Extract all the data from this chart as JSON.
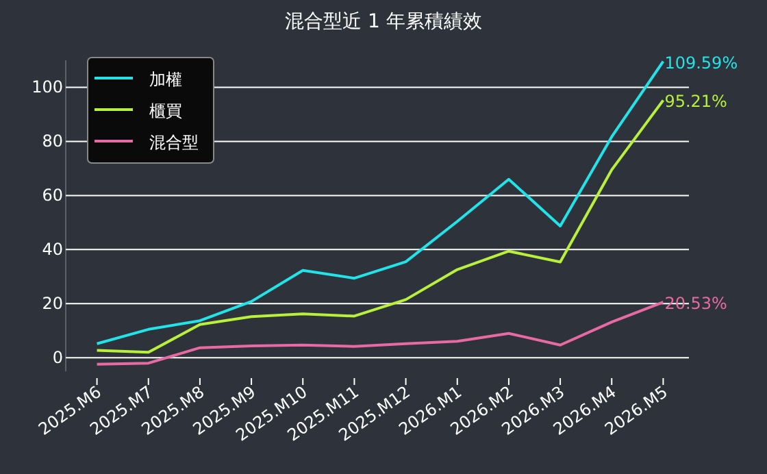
{
  "chart_data": {
    "type": "line",
    "title": "混合型近 1 年累積績效",
    "categories": [
      "2025.M6",
      "2025.M7",
      "2025.M8",
      "2025.M9",
      "2025.M10",
      "2025.M11",
      "2025.M12",
      "2026.M1",
      "2026.M2",
      "2026.M3",
      "2026.M4",
      "2026.M5"
    ],
    "series": [
      {
        "name": "加權",
        "color": "#22e3e8",
        "values": [
          5.2,
          10.5,
          13.7,
          20.8,
          32.3,
          29.4,
          35.5,
          50.4,
          66,
          48.7,
          81.7,
          109.59
        ],
        "value_labels": [
          null,
          null,
          null,
          null,
          null,
          null,
          null,
          null,
          null,
          null,
          null,
          "109.59%"
        ]
      },
      {
        "name": "櫃買",
        "color": "#b8f03c",
        "values": [
          2.7,
          2.0,
          12.3,
          15.2,
          16.2,
          15.4,
          21.5,
          32.6,
          39.4,
          35.4,
          69.5,
          95.21
        ],
        "value_labels": [
          null,
          null,
          null,
          null,
          null,
          null,
          null,
          null,
          null,
          null,
          null,
          "95.21%"
        ]
      },
      {
        "name": "混合型",
        "color": "#e86aa5",
        "values": [
          -2.4,
          -2.0,
          3.7,
          4.4,
          4.7,
          4.2,
          5.2,
          6.1,
          9.0,
          4.7,
          13.2,
          20.53
        ],
        "value_labels": [
          null,
          null,
          null,
          null,
          null,
          null,
          null,
          null,
          null,
          null,
          null,
          "20.53%"
        ]
      }
    ],
    "ylim": [
      -5,
      110
    ],
    "yticks": [
      0,
      20,
      40,
      60,
      80,
      100
    ],
    "grid": "y",
    "legend": "top left"
  }
}
